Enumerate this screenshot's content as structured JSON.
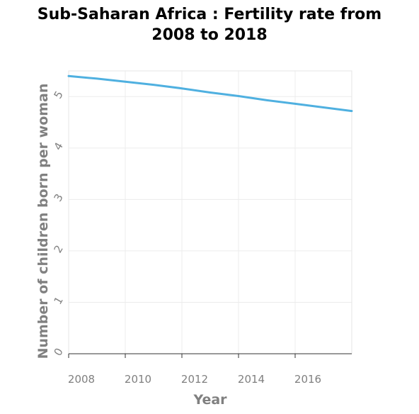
{
  "chart_data": {
    "type": "line",
    "title": "Sub-Saharan Africa : Fertility rate from 2008 to 2018",
    "title_lines": [
      "Sub-Saharan Africa : Fertility rate from",
      "2008 to 2018"
    ],
    "xlabel": "Year",
    "ylabel": "Number of children born per woman",
    "xlim": [
      2008,
      2018
    ],
    "ylim": [
      0,
      5.5
    ],
    "x_ticks": [
      2008,
      2010,
      2012,
      2014,
      2016
    ],
    "y_ticks": [
      0,
      1,
      2,
      3,
      4,
      5
    ],
    "grid": true,
    "series_color": "#4fb0e0",
    "series": [
      {
        "x": [
          2008,
          2009,
          2010,
          2011,
          2012,
          2013,
          2014,
          2015,
          2016,
          2017,
          2018
        ],
        "y": [
          5.4,
          5.35,
          5.29,
          5.23,
          5.16,
          5.08,
          5.01,
          4.93,
          4.86,
          4.79,
          4.72
        ]
      }
    ]
  }
}
